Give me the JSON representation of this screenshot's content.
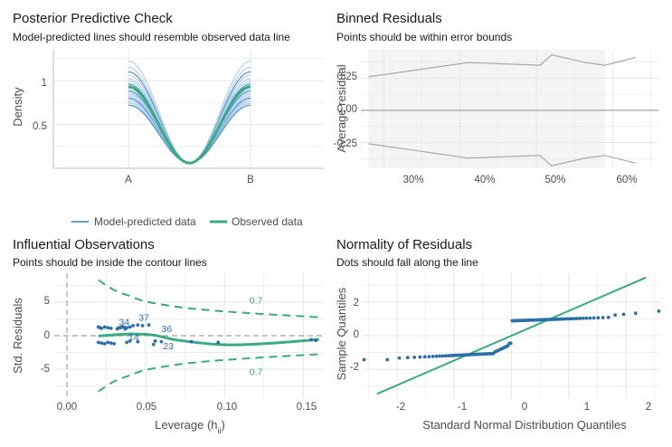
{
  "colors": {
    "model_line": "#2a7fc0",
    "model_band": "#a9c7e8",
    "observed": "#3aaa85",
    "binned_line": "#a8a8a8",
    "zero_line": "#9a9a9a",
    "influence_point": "#2a6fb0",
    "contour": "#3aaa85",
    "qq_point": "#2a6fa8",
    "qq_line": "#3aaa85",
    "grid": "#e6e6e6"
  },
  "chart_data": [
    {
      "id": "ppc",
      "type": "line",
      "title": "Posterior Predictive Check",
      "subtitle": "Model-predicted lines should resemble observed data line",
      "xlabel": "",
      "ylabel": "Density",
      "categories": [
        "A",
        "B"
      ],
      "x_ticks": [
        "A",
        "B"
      ],
      "y_ticks": [
        0.5,
        1.0
      ],
      "ylim": [
        0,
        1.35
      ],
      "observed_peak_density": 0.93,
      "observed_min_density": 0.06,
      "model_peak_densities": [
        1.22,
        1.15,
        1.1,
        1.06,
        1.02,
        0.99,
        0.96,
        0.94,
        0.92,
        0.9,
        0.88,
        0.86,
        0.84,
        0.82,
        0.8,
        0.78,
        0.76,
        0.74,
        0.72
      ],
      "legend": [
        "Model-predicted data",
        "Observed data"
      ],
      "legend_position": "bottom"
    },
    {
      "id": "binned",
      "type": "line",
      "title": "Binned Residuals",
      "subtitle": "Points should be within error bounds",
      "xlabel": "",
      "ylabel": "Average residual",
      "x_ticks": [
        "30%",
        "40%",
        "50%",
        "60%"
      ],
      "y_ticks": [
        "-0.25",
        "0.00",
        "0.25"
      ],
      "xlim": [
        0.27,
        0.66
      ],
      "ylim": [
        -0.45,
        0.47
      ],
      "x": [
        0.28,
        0.41,
        0.505,
        0.52,
        0.565,
        0.59,
        0.63
      ],
      "upper_bound": [
        0.26,
        0.37,
        0.35,
        0.43,
        0.37,
        0.35,
        0.41
      ],
      "lower_bound": [
        -0.26,
        -0.37,
        -0.35,
        -0.43,
        -0.37,
        -0.35,
        -0.41
      ],
      "shaded_x_range": [
        0.28,
        0.59
      ]
    },
    {
      "id": "influence",
      "type": "scatter",
      "title": "Influential Observations",
      "subtitle": "Points should be inside the contour lines",
      "xlabel": "Leverage (h",
      "xlabel_sub": "ii",
      "xlabel_close": ")",
      "ylabel": "Std. Residuals",
      "x_ticks": [
        "0.00",
        "0.05",
        "0.10",
        "0.15"
      ],
      "y_ticks": [
        "-5",
        "0",
        "5"
      ],
      "xlim": [
        -0.008,
        0.163
      ],
      "ylim": [
        -9.3,
        9.3
      ],
      "points": [
        [
          0.02,
          1.3
        ],
        [
          0.021,
          1.2
        ],
        [
          0.022,
          1.1
        ],
        [
          0.024,
          1.3
        ],
        [
          0.026,
          1.2
        ],
        [
          0.028,
          1.1
        ],
        [
          0.02,
          -1.0
        ],
        [
          0.022,
          -1.1
        ],
        [
          0.024,
          -1.2
        ],
        [
          0.026,
          -1.0
        ],
        [
          0.028,
          -1.1
        ],
        [
          0.03,
          -1.2
        ],
        [
          0.032,
          1.0
        ],
        [
          0.034,
          1.2
        ],
        [
          0.036,
          1.3
        ],
        [
          0.038,
          1.2
        ],
        [
          0.04,
          1.3
        ],
        [
          0.042,
          1.5
        ],
        [
          0.045,
          1.6
        ],
        [
          0.048,
          1.5
        ],
        [
          0.052,
          1.6
        ],
        [
          0.033,
          1.2
        ],
        [
          0.035,
          1.3
        ],
        [
          0.037,
          1.0
        ],
        [
          0.038,
          -1.0
        ],
        [
          0.04,
          -0.8
        ],
        [
          0.045,
          -0.9
        ],
        [
          0.055,
          -1.3
        ],
        [
          0.056,
          -0.8
        ],
        [
          0.06,
          -0.9
        ],
        [
          0.079,
          -0.9
        ],
        [
          0.096,
          -1.0
        ],
        [
          0.155,
          -0.6
        ],
        [
          0.158,
          -0.7
        ]
      ],
      "labels": [
        {
          "text": "34",
          "x": 0.033,
          "y": 1.55
        },
        {
          "text": "37",
          "x": 0.0455,
          "y": 2.25
        },
        {
          "text": "36",
          "x": 0.06,
          "y": 0.55
        },
        {
          "text": "14",
          "x": 0.039,
          "y": -0.7
        },
        {
          "text": "23",
          "x": 0.061,
          "y": -2.0
        }
      ],
      "fit_line_x": [
        0.02,
        0.04,
        0.055,
        0.07,
        0.1,
        0.13,
        0.16
      ],
      "fit_line_y": [
        -0.05,
        0.25,
        0.1,
        -0.65,
        -1.35,
        -1.1,
        -0.55
      ],
      "contour_x": [
        0.02,
        0.03,
        0.04,
        0.05,
        0.07,
        0.09,
        0.11,
        0.13,
        0.16
      ],
      "contour_upper": [
        8.3,
        6.8,
        5.9,
        5.1,
        4.3,
        3.8,
        3.45,
        3.15,
        2.75
      ],
      "contour_lower": [
        -8.3,
        -6.8,
        -5.9,
        -5.1,
        -4.3,
        -3.8,
        -3.45,
        -3.15,
        -2.75
      ],
      "contour_label": "0.7",
      "contour_label_x": 0.12,
      "contour_label_y_upper": 4.8,
      "contour_label_y_lower": -4.8,
      "zero_ref_x": 0
    },
    {
      "id": "qq",
      "type": "scatter",
      "title": "Normality of Residuals",
      "subtitle": "Dots should fall along the line",
      "xlabel": "Standard Normal Distribution Quantiles",
      "ylabel": "Sample Quantiles",
      "x_ticks": [
        "-2",
        "-1",
        "0",
        "1",
        "2"
      ],
      "y_ticks": [
        "-2",
        "0",
        "2"
      ],
      "xlim": [
        -2.6,
        2.6
      ],
      "ylim": [
        -3.7,
        3.7
      ],
      "line_from": [
        -2.35,
        -3.45
      ],
      "line_to": [
        2.35,
        3.45
      ]
    }
  ]
}
